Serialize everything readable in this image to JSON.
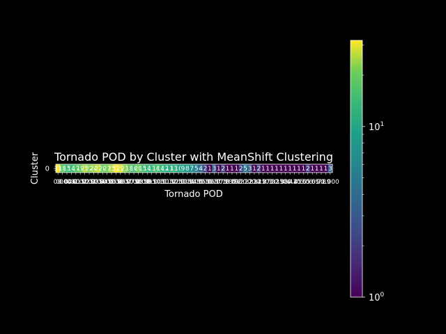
{
  "chart_data": {
    "type": "heatmap",
    "title": "Tornado POD by Cluster with MeanShift Clustering",
    "xlabel": "Tornado POD",
    "ylabel": "Cluster",
    "y_categories": [
      "0"
    ],
    "x_categories": [
      "0",
      "0.004",
      "0.006",
      "0.01",
      "0.015",
      "0.02",
      "0.025",
      "0.03",
      "0.035",
      "0.04",
      "0.045",
      "0.05",
      "0.055",
      "0.06",
      "0.065",
      "0.07",
      "0.075",
      "0.08",
      "0.085",
      "0.09",
      "0.095",
      "0.1",
      "0.105",
      "0.11",
      "0.115",
      "0.12",
      "0.125",
      "0.13",
      "0.135",
      "0.14",
      "0.145",
      "0.15",
      "0.155",
      "0.16",
      "0.165",
      "0.17",
      "0.175",
      "0.18",
      "0.185",
      "0.19",
      "0.2",
      "0.21",
      "0.22",
      "0.23",
      "0.24",
      "0.25",
      "0.27",
      "0.3",
      "0.32",
      "0.35",
      "0.38",
      "0.4",
      "0.42",
      "0.45",
      "0.5",
      "0.55",
      "0.6",
      "0.65",
      "0.7",
      "0.8",
      "0.9",
      "1.000"
    ],
    "values": [
      [
        31,
        18,
        15,
        14,
        17,
        19,
        25,
        22,
        24,
        27,
        20,
        21,
        25,
        33,
        29,
        23,
        18,
        16,
        20,
        15,
        14,
        13,
        16,
        14,
        12,
        11,
        13,
        10,
        9,
        8,
        7,
        5,
        4,
        2,
        1,
        3,
        1,
        2,
        1,
        1,
        1,
        2,
        5,
        3,
        1,
        2,
        1,
        1,
        1,
        1,
        1,
        1,
        1,
        1,
        1,
        1,
        2,
        1,
        1,
        1,
        1,
        3
      ]
    ],
    "cell_labels": [
      [
        "31",
        "18",
        "15",
        "14",
        "17",
        "19",
        "25",
        "22",
        "24",
        "27",
        "20",
        "21",
        "25",
        "33",
        "29",
        "23",
        "18",
        "16",
        "20",
        "15",
        "14",
        "13",
        "16",
        "14",
        "12",
        "11",
        "13",
        "10",
        "9",
        "8",
        "7",
        "5",
        "4",
        "2",
        "1",
        "3",
        "1",
        "2",
        "1",
        "1",
        "1",
        "2",
        "5",
        "3",
        "1",
        "2",
        "1",
        "1",
        "1",
        "1",
        "1",
        "1",
        "1",
        "1",
        "1",
        "1",
        "2",
        "1",
        "1",
        "1",
        "1",
        "3"
      ]
    ],
    "colorscale": "viridis",
    "color_scale_type": "log",
    "colorbar": {
      "range": [
        1,
        32
      ],
      "tick_labels": [
        "10^0",
        "10^1"
      ],
      "tick_values": [
        1,
        10
      ]
    }
  }
}
